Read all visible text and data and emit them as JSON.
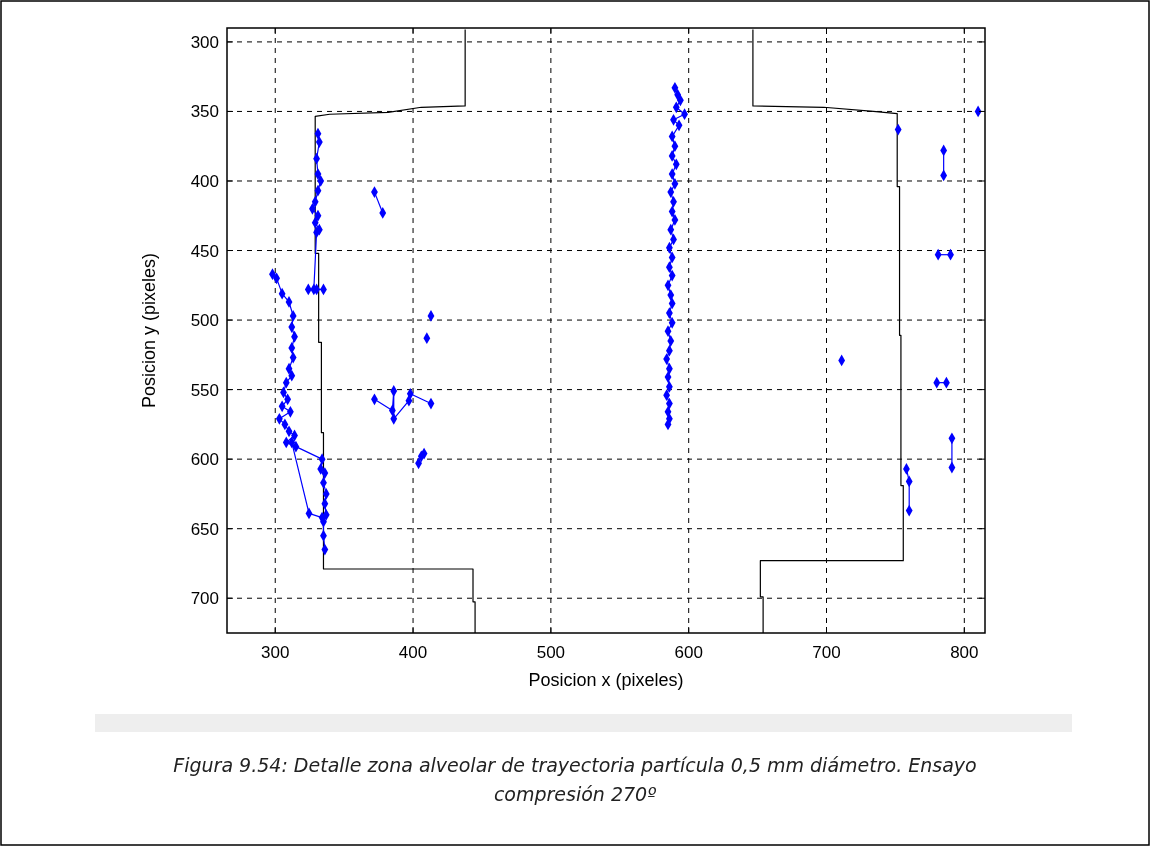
{
  "chart_data": {
    "type": "line",
    "xlabel": "Posicion x (pixeles)",
    "ylabel": "Posicion y (pixeles)",
    "xlim": [
      265,
      815
    ],
    "ylim": [
      725,
      290
    ],
    "xticks": [
      300,
      400,
      500,
      600,
      700,
      800
    ],
    "yticks": [
      300,
      350,
      400,
      450,
      500,
      550,
      600,
      650,
      700
    ],
    "grid": true,
    "marker": "diamond",
    "line_style": "solid",
    "annotations": [
      "Figura 9.54: Detalle zona alveolar de trayectoria partícula 0,5 mm diámetro. Ensayo compresión 270º"
    ],
    "series": [
      {
        "color": "#000000",
        "marker": "none",
        "x": [
          437.8,
          437.8,
          406,
          382,
          339.5,
          329,
          329,
          331.5,
          331.5,
          333.5,
          333.5,
          335,
          335,
          443.5,
          443.5,
          445,
          445
        ],
        "values": [
          291,
          346,
          347,
          350.6,
          352,
          353.5,
          452,
          452,
          516,
          516,
          581,
          581,
          679,
          679,
          702.6,
          702.6,
          725
        ]
      },
      {
        "color": "#000000",
        "marker": "none",
        "x": [
          646.6,
          646.6,
          698,
          734,
          751.3,
          751.3,
          753,
          753,
          754,
          754,
          755.7,
          755.7,
          652,
          652,
          654,
          654
        ],
        "values": [
          291,
          346,
          347,
          350,
          351.5,
          404,
          404,
          511,
          511,
          619,
          619,
          673,
          673,
          699,
          699,
          725
        ]
      },
      {
        "color": "#0000ff",
        "x": [
          331,
          332,
          330,
          331,
          333,
          331,
          329,
          327,
          331,
          329,
          332,
          330,
          328,
          324,
          330,
          335
        ],
        "values": [
          366,
          372,
          384,
          395,
          400,
          407,
          415,
          420,
          425,
          430,
          435,
          437,
          478,
          478,
          478,
          478
        ]
      },
      {
        "color": "#0000ff",
        "x": [
          298,
          301,
          305,
          310,
          313,
          312,
          314,
          312,
          313,
          310,
          312,
          308,
          306,
          309,
          305,
          311,
          303,
          307,
          310,
          314,
          308,
          315,
          334,
          333,
          336,
          335,
          337,
          336,
          337,
          335,
          335,
          336
        ],
        "values": [
          467,
          470,
          481,
          487,
          497,
          505,
          512,
          520,
          527,
          535,
          540,
          545,
          552,
          557,
          562,
          566,
          571,
          575,
          580,
          583,
          588,
          591,
          600,
          607,
          610,
          617,
          625,
          632,
          640,
          645,
          655,
          665
        ]
      },
      {
        "color": "#0000ff",
        "x": [
          312,
          324.5,
          334
        ],
        "values": [
          588,
          639,
          642
        ]
      },
      {
        "color": "#0000ff",
        "x": [
          372,
          378
        ],
        "values": [
          408,
          423
        ]
      },
      {
        "color": "#0000ff",
        "x": [
          372,
          385,
          386,
          386,
          397,
          398,
          413
        ],
        "values": [
          557,
          565,
          551,
          571,
          558,
          553,
          560
        ]
      },
      {
        "color": "#0000ff",
        "x": [
          410
        ],
        "values": [
          513
        ]
      },
      {
        "color": "#0000ff",
        "x": [
          413
        ],
        "values": [
          497
        ]
      },
      {
        "color": "#0000ff",
        "x": [
          404,
          406,
          408
        ],
        "values": [
          603,
          598,
          596
        ]
      },
      {
        "color": "#0000ff",
        "x": [
          590,
          592,
          594,
          591,
          597,
          589,
          593,
          588,
          590,
          588,
          591,
          588,
          590,
          587,
          589,
          588,
          590,
          587,
          589,
          586,
          588,
          586,
          588,
          585,
          587,
          588,
          586,
          588,
          585,
          587,
          586,
          584,
          586,
          585,
          586,
          584,
          586,
          585,
          586,
          585
        ],
        "values": [
          333,
          338,
          342,
          347,
          352,
          356,
          360,
          368,
          375,
          382,
          388,
          395,
          402,
          408,
          415,
          422,
          428,
          435,
          442,
          448,
          455,
          462,
          468,
          475,
          482,
          488,
          495,
          502,
          508,
          515,
          522,
          528,
          535,
          541,
          548,
          554,
          560,
          566,
          571,
          575
        ]
      },
      {
        "color": "#0000ff",
        "x": [
          711
        ],
        "values": [
          529
        ]
      },
      {
        "color": "#0000ff",
        "x": [
          752
        ],
        "values": [
          363
        ]
      },
      {
        "color": "#0000ff",
        "x": [
          785,
          785
        ],
        "values": [
          378,
          396
        ]
      },
      {
        "color": "#0000ff",
        "x": [
          781,
          790
        ],
        "values": [
          453,
          453
        ]
      },
      {
        "color": "#0000ff",
        "x": [
          780,
          787
        ],
        "values": [
          545,
          545
        ]
      },
      {
        "color": "#0000ff",
        "x": [
          791,
          791
        ],
        "values": [
          585,
          606
        ]
      },
      {
        "color": "#0000ff",
        "x": [
          758,
          760,
          760
        ],
        "values": [
          607,
          616,
          637
        ]
      },
      {
        "color": "#0000ff",
        "x": [
          810
        ],
        "values": [
          350
        ]
      }
    ]
  }
}
